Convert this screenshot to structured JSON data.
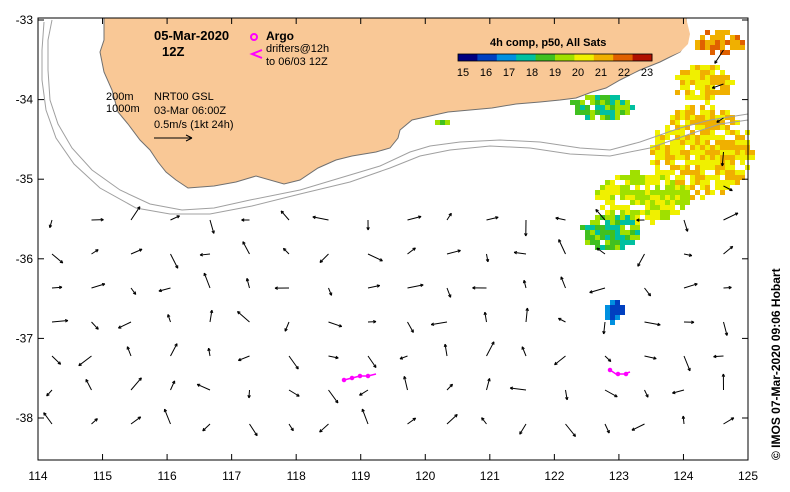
{
  "map": {
    "date_line1": "05-Mar-2020",
    "date_line2": "12Z",
    "argo_label": "Argo",
    "drifters_line1": "drifters@12h",
    "drifters_line2": "to 06/03 12Z",
    "depth_200": "200m",
    "depth_1000": "1000m",
    "product_line1": "NRT00 GSL",
    "product_line2": "03-Mar 06:00Z",
    "scale_label": "0.5m/s (1kt 24h)",
    "colorbar_title": "4h comp, p50, All Sats",
    "colorbar_ticks": [
      "15",
      "16",
      "17",
      "18",
      "19",
      "20",
      "21",
      "22",
      "23"
    ],
    "credit": "© IMOS 07-Mar-2020 09:06 Hobart",
    "lon_ticks": [
      "114",
      "115",
      "116",
      "117",
      "118",
      "119",
      "120",
      "121",
      "122",
      "123",
      "124",
      "125"
    ],
    "lat_ticks": [
      "-33",
      "-34",
      "-35",
      "-36",
      "-37",
      "-38"
    ],
    "extent": {
      "lon": [
        114,
        125
      ],
      "lat": [
        -38.5,
        -33
      ]
    },
    "colors": {
      "land": "#f9c896",
      "argo": "#ff00ff",
      "drifter": "#ff00ff",
      "isobath": "#a0a0a0",
      "coast": "#707070"
    },
    "sst_colormap": [
      "#000080",
      "#0040c0",
      "#0090e0",
      "#00c0a0",
      "#40c020",
      "#a0e000",
      "#f0f000",
      "#f0b000",
      "#e06000",
      "#b01000"
    ]
  }
}
